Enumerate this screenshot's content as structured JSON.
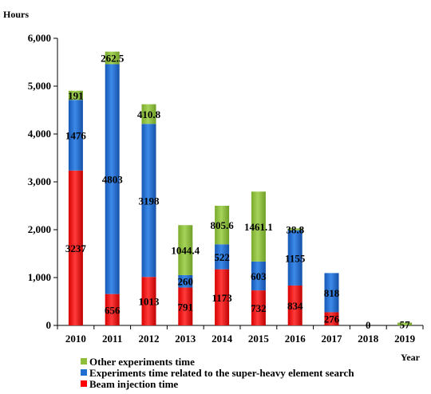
{
  "chart_data": {
    "type": "bar",
    "stacked": true,
    "title": "",
    "ylabel": "Hours",
    "xlabel": "Year",
    "ylim": [
      0,
      6000
    ],
    "yticks": [
      0,
      1000,
      2000,
      3000,
      4000,
      5000,
      6000
    ],
    "ytick_labels": [
      "0",
      "1,000",
      "2,000",
      "3,000",
      "4,000",
      "5,000",
      "6,000"
    ],
    "categories": [
      "2010",
      "2011",
      "2012",
      "2013",
      "2014",
      "2015",
      "2016",
      "2017",
      "2018",
      "2019"
    ],
    "series": [
      {
        "name": "Beam injection time",
        "color": "#ff0000",
        "values": [
          3237,
          656,
          1013,
          791,
          1173,
          732,
          834,
          276,
          0,
          0
        ],
        "labels": [
          "3237",
          "656",
          "1013",
          "791",
          "1173",
          "732",
          "834",
          "276",
          "0",
          ""
        ]
      },
      {
        "name": "Experiments time related to the super-heavy element search",
        "color": "#1f6fd0",
        "values": [
          1476,
          4803,
          3198,
          260,
          522,
          603,
          1155,
          818,
          0,
          0
        ],
        "labels": [
          "1476",
          "4803",
          "3198",
          "260",
          "522",
          "603",
          "1155",
          "818",
          "",
          ""
        ]
      },
      {
        "name": "Other experiments time",
        "color": "#8fbf3a",
        "values": [
          191,
          262.5,
          410.8,
          1044.4,
          805.6,
          1461.1,
          38.8,
          0,
          0,
          57
        ],
        "labels": [
          "191",
          "262.5",
          "410.8",
          "1044.4",
          "805.6",
          "1461.1",
          "38.8",
          "",
          "",
          "57"
        ]
      }
    ],
    "legend_position": "bottom-left",
    "grid": false
  }
}
